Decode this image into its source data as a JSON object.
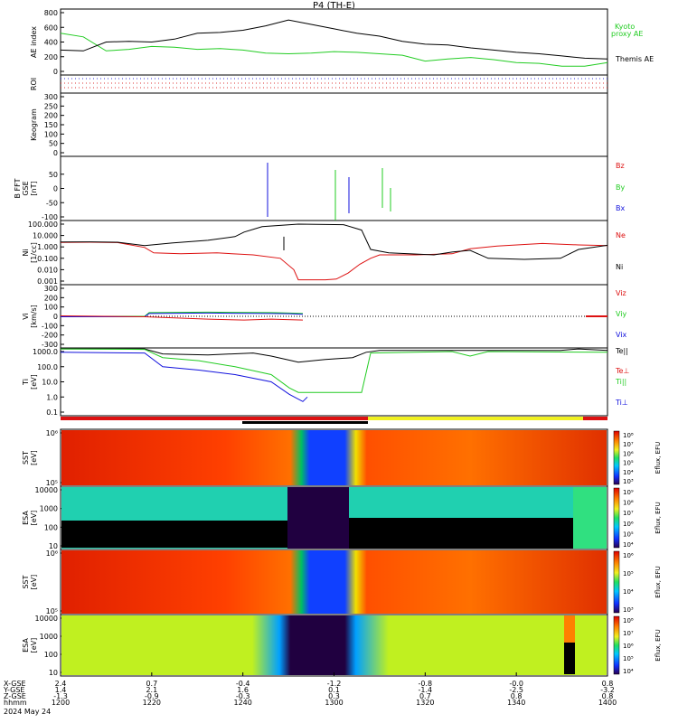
{
  "title": "P4 (TH-E)",
  "date": "2024 May 24",
  "colors": {
    "green": "#22cc22",
    "red": "#dd1111",
    "blue": "#1111dd",
    "black": "#000000"
  },
  "x_axis": {
    "time_ticks": [
      "1200",
      "1220",
      "1240",
      "1300",
      "1320",
      "1340",
      "1400"
    ],
    "row_labels": [
      "X-GSE",
      "Y-GSE",
      "Z-GSE",
      "hhmm"
    ],
    "rows": [
      [
        "2.4",
        "0.7",
        "-0.4",
        "-1.2",
        "-0.8",
        "-0.0",
        "0.8"
      ],
      [
        "1.4",
        "2.1",
        "1.6",
        "0.1",
        "-1.4",
        "-2.5",
        "-3.2"
      ],
      [
        "-1.3",
        "-0.9",
        "-0.3",
        "0.3",
        "0.7",
        "0.8",
        "0.8"
      ]
    ]
  },
  "chart_data": [
    {
      "type": "line",
      "panel": "ae",
      "ylabel": "AE index",
      "y_ticks": [
        "800",
        "600",
        "400",
        "200",
        "0"
      ],
      "ylim": [
        0,
        800
      ],
      "x": [
        "1200",
        "1205",
        "1210",
        "1215",
        "1220",
        "1225",
        "1230",
        "1235",
        "1240",
        "1245",
        "1250",
        "1255",
        "1300",
        "1305",
        "1310",
        "1315",
        "1320",
        "1325",
        "1330",
        "1335",
        "1340",
        "1345",
        "1350",
        "1355",
        "1400"
      ],
      "series": [
        {
          "name": "Kyoto proxy AE",
          "color": "#22cc22",
          "values": [
            520,
            470,
            280,
            300,
            340,
            330,
            300,
            310,
            290,
            250,
            240,
            250,
            270,
            260,
            240,
            220,
            140,
            170,
            190,
            160,
            120,
            110,
            70,
            70,
            120
          ]
        },
        {
          "name": "Themis AE",
          "color": "#000000",
          "values": [
            290,
            280,
            400,
            410,
            400,
            440,
            520,
            530,
            560,
            620,
            700,
            640,
            580,
            520,
            480,
            410,
            370,
            360,
            320,
            290,
            260,
            240,
            210,
            180,
            170
          ]
        }
      ],
      "legend": [
        "Kyoto",
        "proxy AE",
        "Themis AE"
      ]
    },
    {
      "type": "line",
      "panel": "roi",
      "ylabel": "ROI"
    },
    {
      "type": "line",
      "panel": "keogram",
      "ylabel": "Keogram",
      "y_ticks": [
        "300",
        "250",
        "200",
        "150",
        "100",
        "50",
        "0"
      ],
      "ylim": [
        0,
        300
      ]
    },
    {
      "type": "line",
      "panel": "b_fft",
      "ylabel_lines": [
        "B FFT",
        "GSE",
        "[nT]"
      ],
      "y_ticks": [
        "50",
        "0",
        "-50",
        "-100"
      ],
      "ylim": [
        -100,
        100
      ],
      "legend": [
        "Bz",
        "By",
        "Bx"
      ]
    },
    {
      "type": "line",
      "panel": "density",
      "ylabel_lines": [
        "Ni",
        "[1/cc]"
      ],
      "y_ticks": [
        "100.000",
        "10.000",
        "1.000",
        "0.100",
        "0.010",
        "0.001"
      ],
      "ylim": [
        0.001,
        100
      ],
      "log_scale": true,
      "legend": [
        "Ne",
        "Ni"
      ]
    },
    {
      "type": "line",
      "panel": "velocity",
      "ylabel_lines": [
        "Vi",
        "[km/s]"
      ],
      "y_ticks": [
        "300",
        "200",
        "100",
        "0",
        "-100",
        "-200",
        "-300"
      ],
      "ylim": [
        -300,
        300
      ],
      "legend": [
        "Viz",
        "Viy",
        "Vix"
      ]
    },
    {
      "type": "line",
      "panel": "temperature",
      "ylabel_lines": [
        "Ti",
        "[eV]"
      ],
      "y_ticks": [
        "1000.0",
        "100.0",
        "10.0",
        "1.0",
        "0.1"
      ],
      "ylim": [
        0.1,
        1000
      ],
      "log_scale": true,
      "legend": [
        "Te||",
        "Te⊥",
        "Ti||",
        "Ti⊥"
      ]
    },
    {
      "type": "heatmap",
      "panel": "sst_e",
      "ylabel_lines": [
        "SST",
        "[eV]"
      ],
      "y_ticks": [
        "10⁶",
        "10⁵"
      ],
      "colorbar_label": "Eflux, EFU",
      "colorbar_ticks": [
        "10⁸",
        "10⁷",
        "10⁶",
        "10⁵",
        "10⁴",
        "10³"
      ]
    },
    {
      "type": "heatmap",
      "panel": "esa_e",
      "ylabel_lines": [
        "ESA",
        "[eV]"
      ],
      "y_ticks": [
        "10000",
        "1000",
        "100",
        "10"
      ],
      "colorbar_label": "Eflux, EFU",
      "colorbar_ticks": [
        "10⁹",
        "10⁸",
        "10⁷",
        "10⁶",
        "10⁵",
        "10⁴"
      ]
    },
    {
      "type": "heatmap",
      "panel": "sst_i",
      "ylabel_lines": [
        "SST",
        "[eV]"
      ],
      "y_ticks": [
        "10⁶",
        "10⁵"
      ],
      "colorbar_label": "Eflux, EFU",
      "colorbar_ticks": [
        "10⁶",
        "10⁵",
        "10⁴",
        "10³"
      ]
    },
    {
      "type": "heatmap",
      "panel": "esa_i",
      "ylabel_lines": [
        "ESA",
        "[eV]"
      ],
      "y_ticks": [
        "10000",
        "1000",
        "100",
        "10"
      ],
      "colorbar_label": "Eflux, EFU",
      "colorbar_ticks": [
        "10⁸",
        "10⁷",
        "10⁶",
        "10⁵",
        "10⁴"
      ]
    }
  ]
}
